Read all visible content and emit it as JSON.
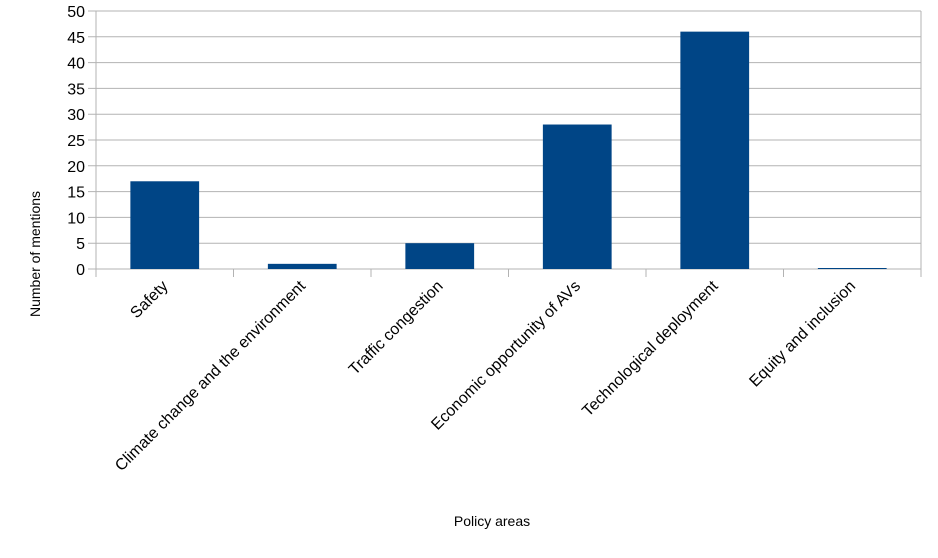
{
  "chart_data": {
    "type": "bar",
    "title": "",
    "xlabel": "Policy areas",
    "ylabel": "Number of mentions",
    "categories": [
      "Safety",
      "Climate change and the environment",
      "Traffic congestion",
      "Economic opportunity of AVs",
      "Technological deployment",
      "Equity and inclusion"
    ],
    "values": [
      17,
      1,
      5,
      28,
      46,
      0
    ],
    "ylim": [
      0,
      50
    ],
    "yticks": [
      0,
      5,
      10,
      15,
      20,
      25,
      30,
      35,
      40,
      45,
      50
    ],
    "grid": "horizontal",
    "legend": "none",
    "bar_color": "#004586",
    "grid_color": "#b3b3b3"
  }
}
